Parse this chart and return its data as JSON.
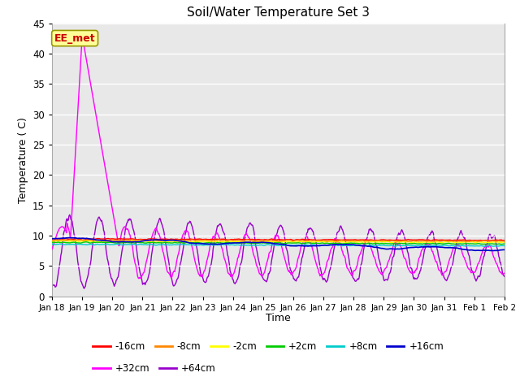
{
  "title": "Soil/Water Temperature Set 3",
  "xlabel": "Time",
  "ylabel": "Temperature ( C)",
  "ylim": [
    0,
    45
  ],
  "yticks": [
    0,
    5,
    10,
    15,
    20,
    25,
    30,
    35,
    40,
    45
  ],
  "fig_bg": "#ffffff",
  "plot_bg": "#e8e8e8",
  "series": {
    "-16cm": {
      "color": "#ff0000",
      "lw": 1.0
    },
    "-8cm": {
      "color": "#ff8800",
      "lw": 1.0
    },
    "-2cm": {
      "color": "#ffff00",
      "lw": 1.0
    },
    "+2cm": {
      "color": "#00cc00",
      "lw": 1.0
    },
    "+8cm": {
      "color": "#00cccc",
      "lw": 1.0
    },
    "+16cm": {
      "color": "#0000cc",
      "lw": 1.2
    },
    "+32cm": {
      "color": "#ff00ff",
      "lw": 1.0
    },
    "+64cm": {
      "color": "#9900cc",
      "lw": 1.0
    }
  },
  "annotation": {
    "text": "EE_met",
    "fontsize": 9,
    "color": "#cc0000",
    "bg": "#ffff99",
    "edgecolor": "#999900"
  },
  "xtick_labels": [
    "Jan 18",
    "Jan 19",
    "Jan 20",
    "Jan 21",
    "Jan 22",
    "Jan 23",
    "Jan 24",
    "Jan 25",
    "Jan 26",
    "Jan 27",
    "Jan 28",
    "Jan 29",
    "Jan 30",
    "Jan 31",
    "Feb 1",
    "Feb 2"
  ],
  "legend_row1": [
    "-16cm",
    "-8cm",
    "-2cm",
    "+2cm",
    "+8cm",
    "+16cm"
  ],
  "legend_row2": [
    "+32cm",
    "+64cm"
  ],
  "seed": 7
}
